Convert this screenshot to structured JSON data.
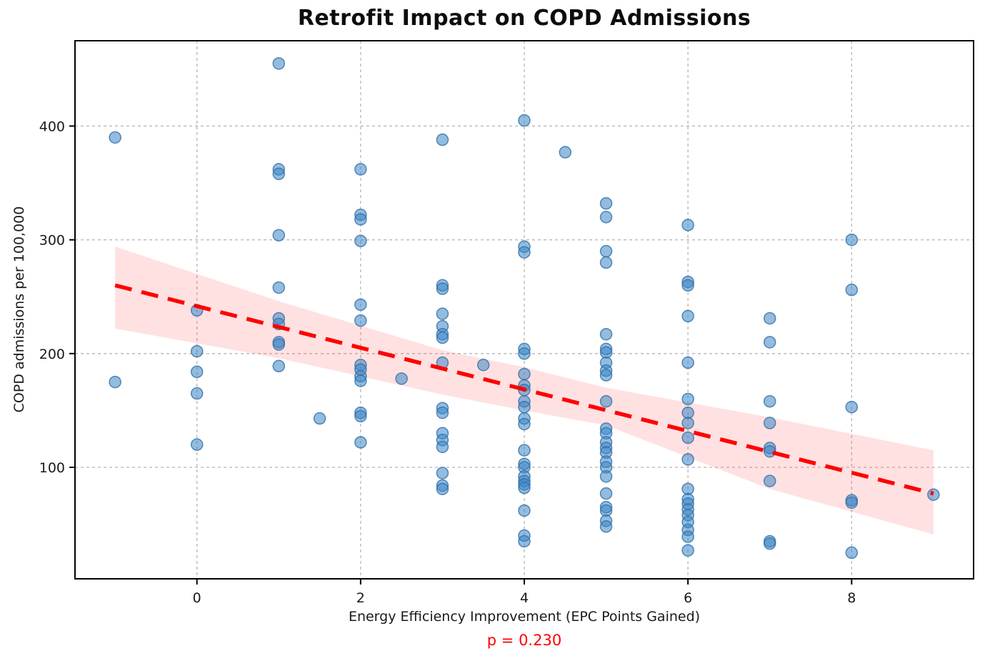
{
  "figure": {
    "title": "Retrofit Impact on COPD Admissions",
    "xlabel": "Energy Efficiency Improvement (EPC Points Gained)",
    "ylabel": "COPD admissions per 100,000",
    "annotation": "p = 0.230",
    "annotation_color": "#ff0000"
  },
  "chart_data": {
    "type": "scatter",
    "title": "Retrofit Impact on COPD Admissions",
    "xlabel": "Energy Efficiency Improvement (EPC Points Gained)",
    "ylabel": "COPD admissions per 100,000",
    "annotation": "p = 0.230",
    "xlim": [
      -1.49,
      9.49
    ],
    "ylim": [
      2,
      475
    ],
    "xticks": [
      0,
      2,
      4,
      6,
      8
    ],
    "yticks": [
      100,
      200,
      300,
      400
    ],
    "grid": true,
    "legend": null,
    "points": [
      [
        -1,
        390
      ],
      [
        -1,
        175
      ],
      [
        0,
        238
      ],
      [
        0,
        202
      ],
      [
        0,
        184
      ],
      [
        0,
        165
      ],
      [
        0,
        120
      ],
      [
        1,
        455
      ],
      [
        1,
        362
      ],
      [
        1,
        358
      ],
      [
        1,
        304
      ],
      [
        1,
        258
      ],
      [
        1,
        231
      ],
      [
        1,
        226
      ],
      [
        1,
        210
      ],
      [
        1,
        208
      ],
      [
        1,
        189
      ],
      [
        1.5,
        143
      ],
      [
        2,
        362
      ],
      [
        2,
        322
      ],
      [
        2,
        318
      ],
      [
        2,
        299
      ],
      [
        2,
        243
      ],
      [
        2,
        229
      ],
      [
        2,
        190
      ],
      [
        2,
        186
      ],
      [
        2,
        180
      ],
      [
        2,
        176
      ],
      [
        2,
        148
      ],
      [
        2,
        145
      ],
      [
        2,
        122
      ],
      [
        2.5,
        178
      ],
      [
        3,
        388
      ],
      [
        3,
        260
      ],
      [
        3,
        257
      ],
      [
        3,
        235
      ],
      [
        3,
        224
      ],
      [
        3,
        217
      ],
      [
        3,
        214
      ],
      [
        3,
        192
      ],
      [
        3,
        152
      ],
      [
        3,
        148
      ],
      [
        3,
        130
      ],
      [
        3,
        124
      ],
      [
        3,
        118
      ],
      [
        3,
        95
      ],
      [
        3,
        84
      ],
      [
        3,
        81
      ],
      [
        3.5,
        190
      ],
      [
        4,
        405
      ],
      [
        4,
        294
      ],
      [
        4,
        289
      ],
      [
        4,
        204
      ],
      [
        4,
        200
      ],
      [
        4,
        182
      ],
      [
        4,
        172
      ],
      [
        4,
        168
      ],
      [
        4,
        158
      ],
      [
        4,
        153
      ],
      [
        4,
        143
      ],
      [
        4,
        138
      ],
      [
        4,
        115
      ],
      [
        4,
        103
      ],
      [
        4,
        100
      ],
      [
        4,
        92
      ],
      [
        4,
        88
      ],
      [
        4,
        85
      ],
      [
        4,
        82
      ],
      [
        4,
        62
      ],
      [
        4,
        40
      ],
      [
        4,
        35
      ],
      [
        4.5,
        377
      ],
      [
        5,
        332
      ],
      [
        5,
        320
      ],
      [
        5,
        290
      ],
      [
        5,
        280
      ],
      [
        5,
        217
      ],
      [
        5,
        204
      ],
      [
        5,
        201
      ],
      [
        5,
        192
      ],
      [
        5,
        185
      ],
      [
        5,
        181
      ],
      [
        5,
        158
      ],
      [
        5,
        134
      ],
      [
        5,
        130
      ],
      [
        5,
        122
      ],
      [
        5,
        117
      ],
      [
        5,
        113
      ],
      [
        5,
        105
      ],
      [
        5,
        100
      ],
      [
        5,
        92
      ],
      [
        5,
        77
      ],
      [
        5,
        65
      ],
      [
        5,
        62
      ],
      [
        5,
        53
      ],
      [
        5,
        48
      ],
      [
        6,
        313
      ],
      [
        6,
        263
      ],
      [
        6,
        260
      ],
      [
        6,
        233
      ],
      [
        6,
        192
      ],
      [
        6,
        160
      ],
      [
        6,
        148
      ],
      [
        6,
        139
      ],
      [
        6,
        126
      ],
      [
        6,
        107
      ],
      [
        6,
        81
      ],
      [
        6,
        72
      ],
      [
        6,
        68
      ],
      [
        6,
        63
      ],
      [
        6,
        58
      ],
      [
        6,
        52
      ],
      [
        6,
        45
      ],
      [
        6,
        39
      ],
      [
        6,
        27
      ],
      [
        7,
        231
      ],
      [
        7,
        210
      ],
      [
        7,
        158
      ],
      [
        7,
        139
      ],
      [
        7,
        117
      ],
      [
        7,
        114
      ],
      [
        7,
        88
      ],
      [
        7,
        35
      ],
      [
        7,
        33
      ],
      [
        8,
        300
      ],
      [
        8,
        256
      ],
      [
        8,
        153
      ],
      [
        8,
        71
      ],
      [
        8,
        69
      ],
      [
        8,
        25
      ],
      [
        9,
        76
      ]
    ],
    "trend_line": {
      "x": [
        -1,
        9
      ],
      "y": [
        260,
        77
      ]
    },
    "ci_band": [
      {
        "x": -1,
        "lower": 222,
        "upper": 294
      },
      {
        "x": 1,
        "lower": 196,
        "upper": 246
      },
      {
        "x": 3,
        "lower": 164,
        "upper": 203
      },
      {
        "x": 4,
        "lower": 150,
        "upper": 188
      },
      {
        "x": 5,
        "lower": 137,
        "upper": 170
      },
      {
        "x": 7,
        "lower": 81,
        "upper": 144
      },
      {
        "x": 9,
        "lower": 41,
        "upper": 115
      }
    ],
    "styles": {
      "point_fill": "#3a85c4",
      "point_fill_opacity": 0.55,
      "point_stroke": "#2f6ea8",
      "point_stroke_opacity": 0.8,
      "point_radius": 8,
      "trend_color": "#ff0000",
      "trend_width": 5.5,
      "trend_dash": "24 14",
      "band_fill": "#ff4444",
      "band_opacity": 0.16,
      "grid_color": "#b5b5b5",
      "grid_dash": "4 4",
      "spine_color": "#000000",
      "tick_label_color": "#1a1a1a",
      "tick_font_size": 19
    }
  }
}
